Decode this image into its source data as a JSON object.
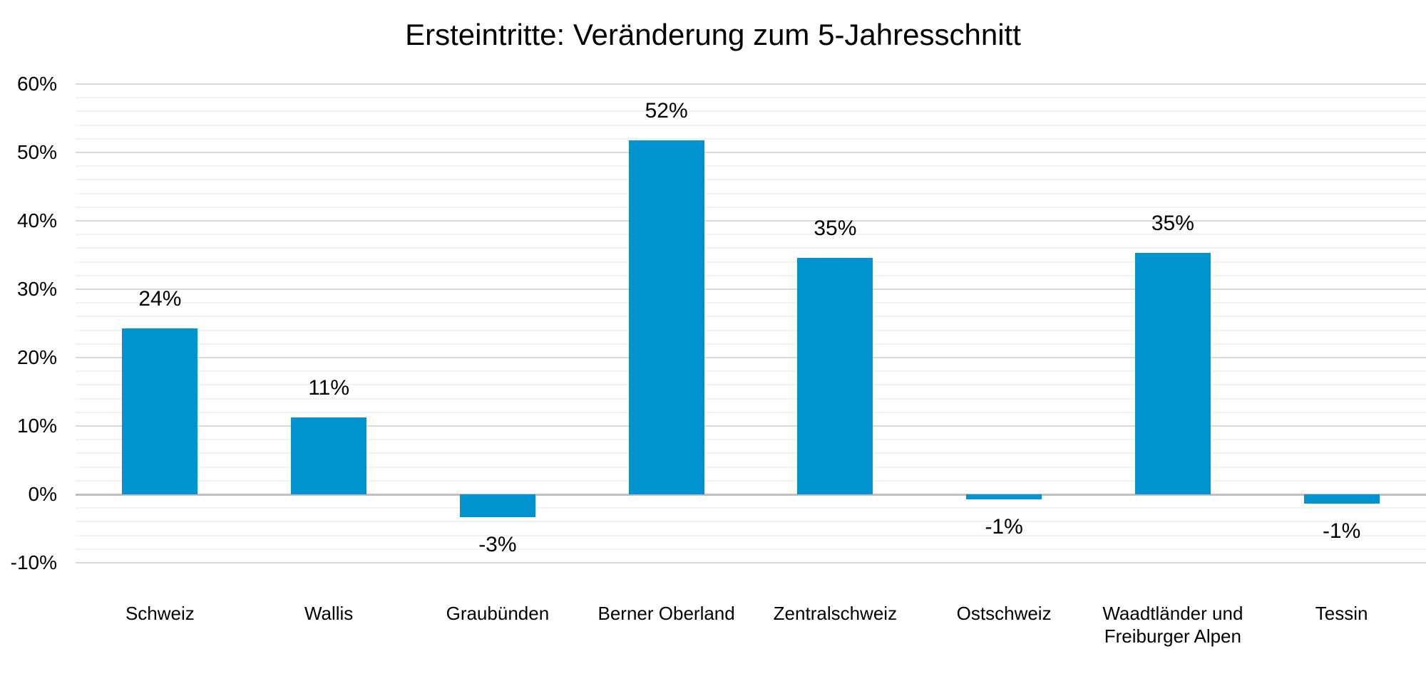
{
  "chart_data": {
    "type": "bar",
    "title": "Ersteintritte: Veränderung zum 5-Jahresschnitt",
    "categories": [
      "Schweiz",
      "Wallis",
      "Graubünden",
      "Berner Oberland",
      "Zentralschweiz",
      "Ostschweiz",
      "Waadtländer und Freiburger Alpen",
      "Tessin"
    ],
    "values": [
      24.3,
      11.3,
      -3.3,
      51.8,
      34.6,
      -0.7,
      35.3,
      -1.4
    ],
    "data_labels": [
      "24%",
      "11%",
      "-3%",
      "52%",
      "35%",
      "-1%",
      "35%",
      "-1%"
    ],
    "xlabel": "",
    "ylabel": "",
    "ylim": [
      -10,
      60
    ],
    "yticks": [
      60,
      50,
      40,
      30,
      20,
      10,
      0,
      -10
    ],
    "ytick_labels": [
      "60%",
      "50%",
      "40%",
      "30%",
      "20%",
      "10%",
      "0%",
      "-10%"
    ],
    "minor_gridline_step_pct": 2,
    "grid": "horizontal major and minor gridlines, no vertical gridlines",
    "legend": false,
    "bar_color": "#0192D0"
  },
  "colors": {
    "background": "#FFFFFF",
    "bar": "#0192D0",
    "text": "#000000",
    "major_gridline": "#D9D9D9",
    "minor_gridline": "#F2F2F2",
    "zero_line": "#BFBFBF"
  }
}
